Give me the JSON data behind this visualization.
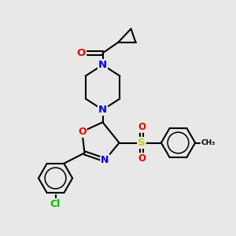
{
  "bg_color": "#e8e8e8",
  "bond_color": "#000000",
  "bond_width": 1.5,
  "atom_colors": {
    "C": "#000000",
    "N": "#0000ee",
    "O": "#ee0000",
    "S": "#cccc00",
    "Cl": "#00bb00"
  },
  "font_size": 8.0,
  "figsize": [
    3.0,
    3.0
  ],
  "dpi": 100
}
